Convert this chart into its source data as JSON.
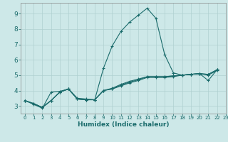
{
  "xlabel": "Humidex (Indice chaleur)",
  "ylabel": "",
  "bg_color": "#cde8e8",
  "grid_color": "#afd0d0",
  "line_color": "#1a6b6b",
  "xlim": [
    -0.5,
    23
  ],
  "ylim": [
    2.5,
    9.7
  ],
  "x_ticks": [
    0,
    1,
    2,
    3,
    4,
    5,
    6,
    7,
    8,
    9,
    10,
    11,
    12,
    13,
    14,
    15,
    16,
    17,
    18,
    19,
    20,
    21,
    22,
    23
  ],
  "y_ticks": [
    3,
    4,
    5,
    6,
    7,
    8,
    9
  ],
  "series": [
    [
      3.35,
      3.1,
      2.85,
      3.9,
      3.95,
      4.1,
      3.5,
      3.45,
      3.4,
      5.45,
      6.9,
      7.85,
      8.45,
      8.9,
      9.35,
      8.7,
      6.35,
      5.15,
      5.0,
      5.05,
      5.1,
      4.65,
      5.35
    ],
    [
      3.35,
      3.15,
      2.9,
      3.35,
      3.9,
      4.1,
      3.45,
      3.4,
      3.4,
      4.0,
      4.1,
      4.3,
      4.5,
      4.65,
      4.85,
      4.85,
      4.85,
      4.9,
      5.0,
      5.05,
      5.1,
      5.0,
      5.3
    ],
    [
      3.35,
      3.15,
      2.9,
      3.35,
      3.9,
      4.1,
      3.45,
      3.4,
      3.4,
      4.0,
      4.1,
      4.35,
      4.55,
      4.7,
      4.9,
      4.9,
      4.9,
      4.95,
      5.0,
      5.05,
      5.1,
      5.05,
      5.35
    ],
    [
      3.35,
      3.15,
      2.9,
      3.35,
      3.9,
      4.1,
      3.45,
      3.4,
      3.4,
      4.0,
      4.15,
      4.4,
      4.6,
      4.75,
      4.9,
      4.9,
      4.9,
      4.95,
      5.0,
      5.05,
      5.1,
      5.05,
      5.35
    ]
  ]
}
